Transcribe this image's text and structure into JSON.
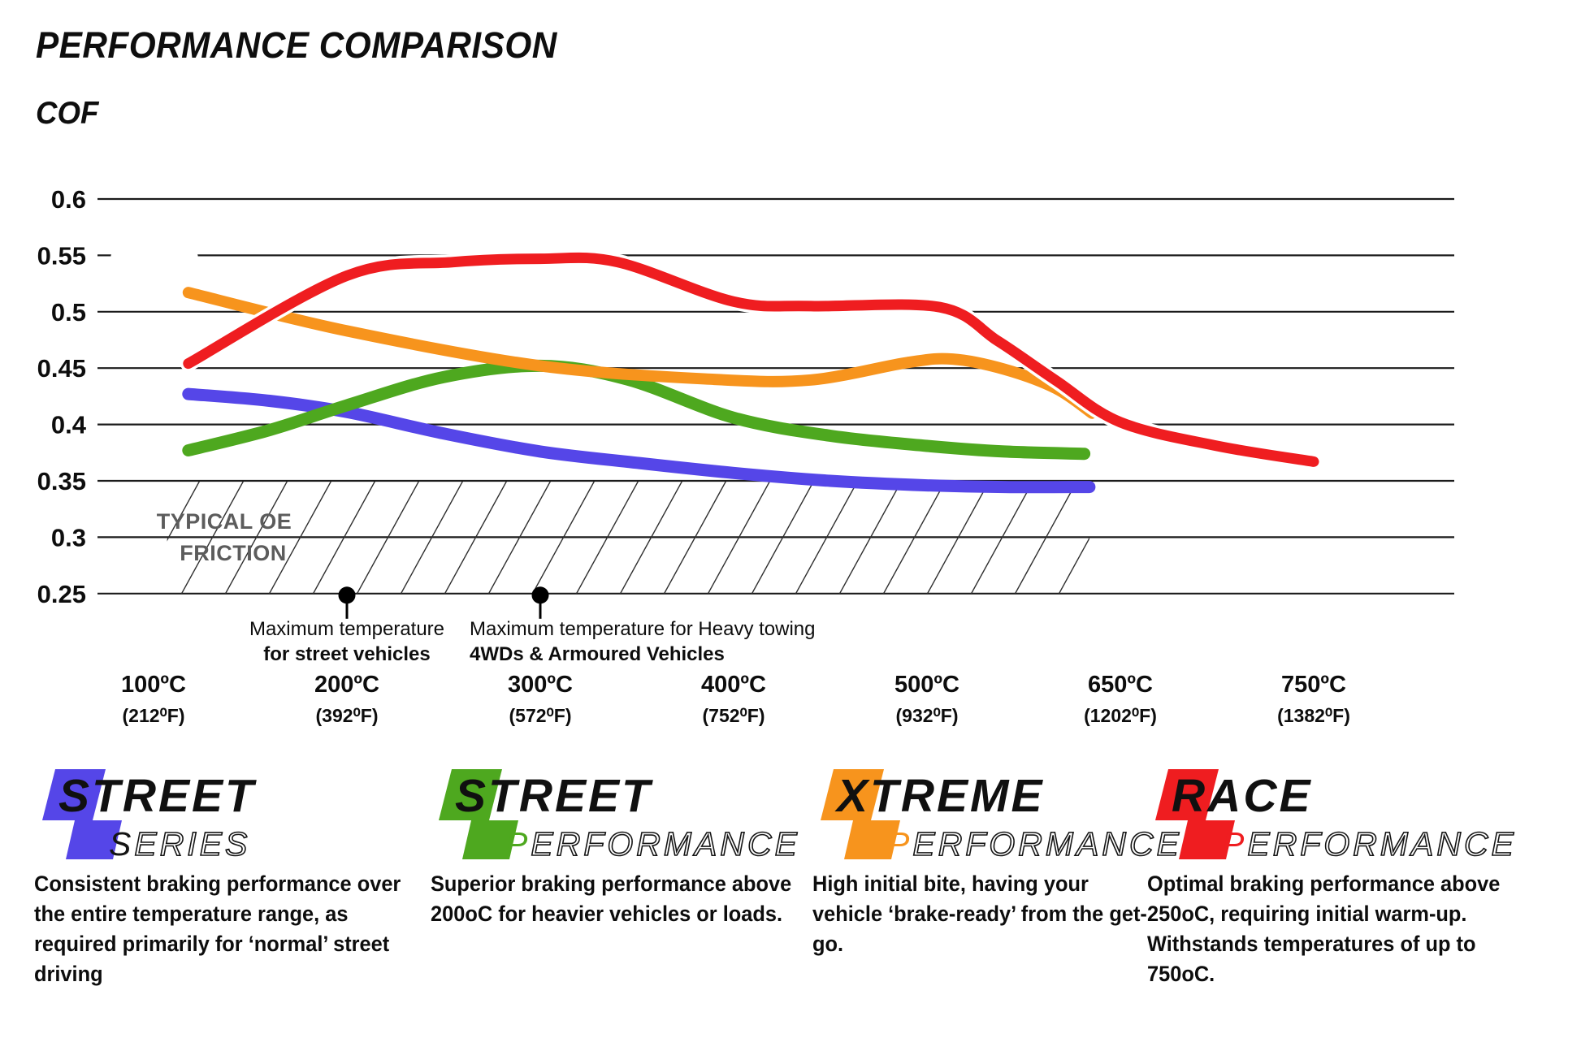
{
  "header": {
    "title": "PERFORMANCE COMPARISON",
    "axis_label": "COF"
  },
  "chart_data": {
    "type": "line",
    "title": "PERFORMANCE COMPARISON",
    "ylabel": "COF",
    "xlabel": "",
    "ylim": [
      0.25,
      0.62
    ],
    "grid": "horizontal",
    "legend_position": "bottom",
    "y_ticks": [
      "0.6",
      "0.55",
      "0.5",
      "0.45",
      "0.4",
      "0.35",
      "0.3",
      "0.25"
    ],
    "x_ticks": [
      {
        "t": 100,
        "c": "100ºC",
        "f": "(212⁰F)"
      },
      {
        "t": 200,
        "c": "200ºC",
        "f": "(392⁰F)"
      },
      {
        "t": 300,
        "c": "300ºC",
        "f": "(572⁰F)"
      },
      {
        "t": 400,
        "c": "400ºC",
        "f": "(752⁰F)"
      },
      {
        "t": 500,
        "c": "500ºC",
        "f": "(932⁰F)"
      },
      {
        "t": 650,
        "c": "650ºC",
        "f": "(1202⁰F)"
      },
      {
        "t": 750,
        "c": "750ºC",
        "f": "(1382⁰F)"
      }
    ],
    "series": [
      {
        "name": "Street Series",
        "color": "#5546e8",
        "width": 15,
        "points": [
          [
            118,
            0.427
          ],
          [
            160,
            0.421
          ],
          [
            200,
            0.411
          ],
          [
            250,
            0.392
          ],
          [
            300,
            0.376
          ],
          [
            350,
            0.366
          ],
          [
            400,
            0.357
          ],
          [
            450,
            0.35
          ],
          [
            500,
            0.346
          ],
          [
            560,
            0.3445
          ],
          [
            626,
            0.3445
          ]
        ]
      },
      {
        "name": "Street Performance",
        "color": "#4ea81f",
        "width": 15,
        "points": [
          [
            118,
            0.377
          ],
          [
            160,
            0.395
          ],
          [
            200,
            0.417
          ],
          [
            250,
            0.442
          ],
          [
            300,
            0.452
          ],
          [
            345,
            0.44
          ],
          [
            400,
            0.406
          ],
          [
            450,
            0.39
          ],
          [
            500,
            0.381
          ],
          [
            560,
            0.376
          ],
          [
            622,
            0.374
          ]
        ]
      },
      {
        "name": "Xtreme Performance",
        "color": "#f7941d",
        "width": 14,
        "points": [
          [
            118,
            0.517
          ],
          [
            200,
            0.483
          ],
          [
            300,
            0.452
          ],
          [
            390,
            0.44
          ],
          [
            440,
            0.4395
          ],
          [
            490,
            0.455
          ],
          [
            520,
            0.458
          ],
          [
            560,
            0.449
          ],
          [
            600,
            0.432
          ],
          [
            628,
            0.41
          ]
        ]
      },
      {
        "name": "Race Performance",
        "color": "#ef1d20",
        "width": 13,
        "halo": true,
        "points": [
          [
            118,
            0.454
          ],
          [
            200,
            0.532
          ],
          [
            255,
            0.544
          ],
          [
            300,
            0.547
          ],
          [
            340,
            0.544
          ],
          [
            400,
            0.509
          ],
          [
            440,
            0.505
          ],
          [
            510,
            0.504
          ],
          [
            555,
            0.474
          ],
          [
            600,
            0.439
          ],
          [
            650,
            0.402
          ],
          [
            700,
            0.381
          ],
          [
            750,
            0.367
          ]
        ]
      }
    ],
    "oe_zone": {
      "label_line1": "TYPICAL OE",
      "label_line2": "FRICTION",
      "v_range": [
        0.25,
        0.35
      ],
      "t_range": [
        107,
        626
      ]
    },
    "annotations": [
      {
        "t": 200,
        "v": 0.25,
        "line1": "Maximum temperature",
        "line2": "for street vehicles",
        "align": "center",
        "label_dx": 0
      },
      {
        "t": 300,
        "v": 0.25,
        "line1": "Maximum temperature for Heavy towing",
        "line2": "4WDs & Armoured Vehicles",
        "align": "left",
        "label_dx": -87
      }
    ]
  },
  "legend": [
    {
      "word1": "STREET",
      "word2": "SERIES",
      "badge_color": "#5546e8",
      "word2_first_color": "#141414",
      "description": "Consistent braking performance over the entire temperature range, as required primarily for ‘normal’ street driving"
    },
    {
      "word1": "STREET",
      "word2": "PERFORMANCE",
      "badge_color": "#4ea81f",
      "word2_first_color": "#4ea81f",
      "description": "Superior braking performance above 200oC for heavier vehicles or loads."
    },
    {
      "word1": "XTREME",
      "word2": "PERFORMANCE",
      "badge_color": "#f7941d",
      "word2_first_color": "#f7941d",
      "description": "High initial bite, having your vehicle ‘brake-ready’ from the get-go."
    },
    {
      "word1": "RACE",
      "word2": "PERFORMANCE",
      "badge_color": "#ef1d20",
      "word2_first_color": "#ef1d20",
      "description": "Optimal braking performance above 250oC, requiring initial warm-up. Withstands temperatures of up to 750oC."
    }
  ]
}
